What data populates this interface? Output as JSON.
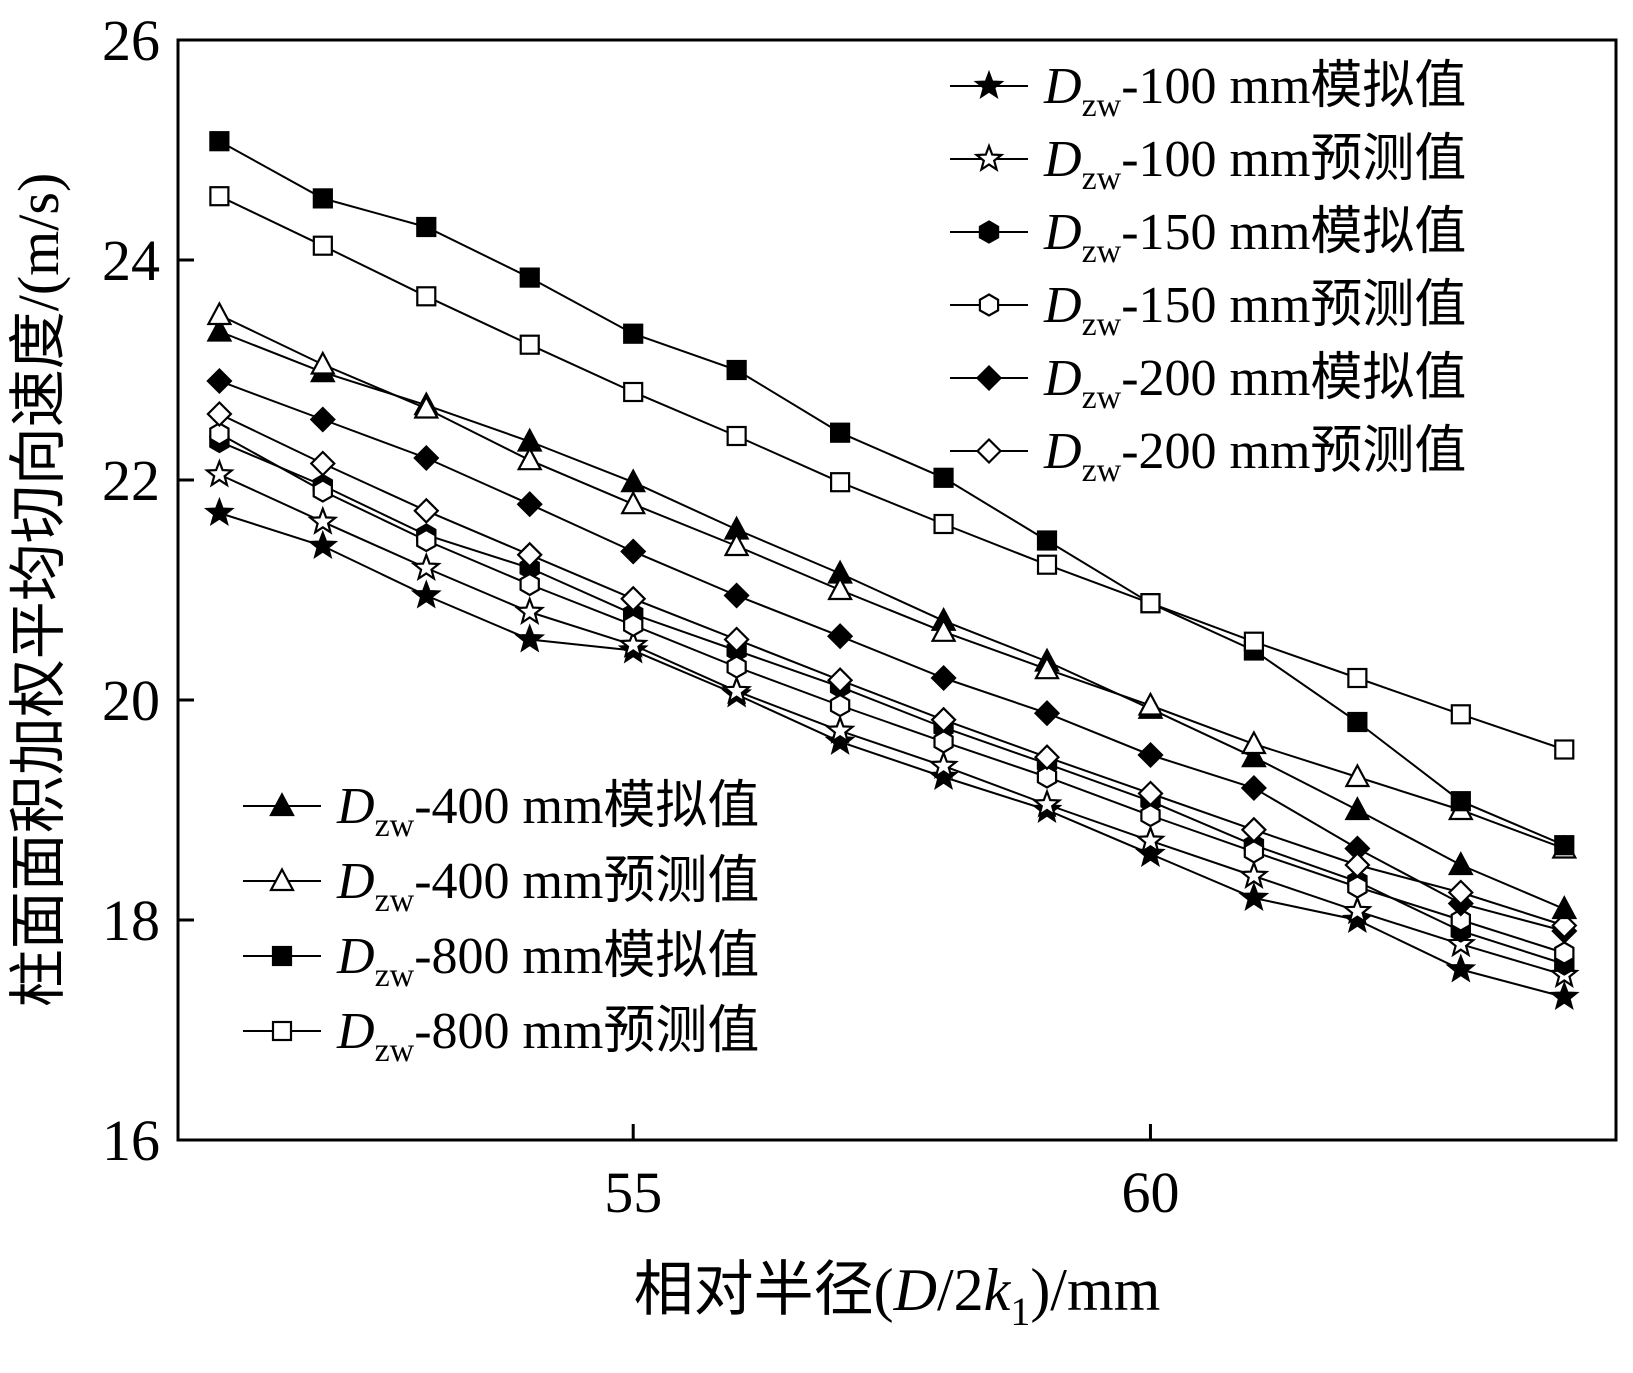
{
  "colors": {
    "foreground": "#000000",
    "background": "#ffffff"
  },
  "chart_data": {
    "type": "line",
    "title": "",
    "ylabel": "柱面面积加权平均切向速度/(m/s)",
    "xlabel_parts": [
      {
        "t": "相对半径(",
        "style": "normal"
      },
      {
        "t": "D",
        "style": "italic"
      },
      {
        "t": "/2",
        "style": "normal"
      },
      {
        "t": "k",
        "style": "italic"
      },
      {
        "t": "1",
        "style": "sub"
      },
      {
        "t": ")/mm",
        "style": "normal"
      }
    ],
    "xlim": [
      50.6,
      64.5
    ],
    "ylim": [
      16,
      26
    ],
    "xticks": [
      55,
      60
    ],
    "yticks": [
      16,
      18,
      20,
      22,
      24,
      26
    ],
    "x": [
      51,
      52,
      53,
      54,
      55,
      56,
      57,
      58,
      59,
      60,
      61,
      62,
      63,
      64
    ],
    "series": [
      {
        "id": "dzw100-sim",
        "marker": "star",
        "filled": true,
        "label_d": "D",
        "label_sub": "zw",
        "label_text": "-100 mm模拟值",
        "values": [
          21.7,
          21.4,
          20.95,
          20.55,
          20.45,
          20.05,
          19.62,
          19.3,
          19.0,
          18.6,
          18.2,
          18.0,
          17.55,
          17.3
        ]
      },
      {
        "id": "dzw100-pred",
        "marker": "star",
        "filled": false,
        "label_d": "D",
        "label_sub": "zw",
        "label_text": "-100 mm预测值",
        "values": [
          22.05,
          21.62,
          21.2,
          20.8,
          20.5,
          20.08,
          19.72,
          19.4,
          19.05,
          18.72,
          18.4,
          18.08,
          17.78,
          17.5
        ]
      },
      {
        "id": "dzw150-sim",
        "marker": "hexagon",
        "filled": true,
        "label_d": "D",
        "label_sub": "zw",
        "label_text": "-150 mm模拟值",
        "values": [
          22.35,
          21.95,
          21.5,
          21.2,
          20.78,
          20.45,
          20.12,
          19.75,
          19.42,
          19.08,
          18.68,
          18.35,
          17.9,
          17.6
        ]
      },
      {
        "id": "dzw150-pred",
        "marker": "hexagon",
        "filled": false,
        "label_d": "D",
        "label_sub": "zw",
        "label_text": "-150 mm预测值",
        "values": [
          22.42,
          21.9,
          21.45,
          21.05,
          20.68,
          20.3,
          19.95,
          19.62,
          19.3,
          18.95,
          18.62,
          18.3,
          18.0,
          17.7
        ]
      },
      {
        "id": "dzw200-sim",
        "marker": "diamond",
        "filled": true,
        "label_d": "D",
        "label_sub": "zw",
        "label_text": "-200 mm模拟值",
        "values": [
          22.9,
          22.55,
          22.2,
          21.78,
          21.35,
          20.95,
          20.58,
          20.2,
          19.88,
          19.5,
          19.2,
          18.65,
          18.15,
          17.9
        ]
      },
      {
        "id": "dzw200-pred",
        "marker": "diamond",
        "filled": false,
        "label_d": "D",
        "label_sub": "zw",
        "label_text": "-200 mm预测值",
        "values": [
          22.6,
          22.15,
          21.72,
          21.32,
          20.92,
          20.55,
          20.18,
          19.82,
          19.48,
          19.15,
          18.82,
          18.5,
          18.25,
          17.95
        ]
      },
      {
        "id": "dzw400-sim",
        "marker": "triangle",
        "filled": true,
        "label_d": "D",
        "label_sub": "zw",
        "label_text": "-400 mm模拟值",
        "values": [
          23.35,
          22.98,
          22.68,
          22.35,
          21.98,
          21.55,
          21.15,
          20.72,
          20.35,
          19.92,
          19.48,
          19.0,
          18.5,
          18.1
        ]
      },
      {
        "id": "dzw400-pred",
        "marker": "triangle",
        "filled": false,
        "label_d": "D",
        "label_sub": "zw",
        "label_text": "-400 mm预测值",
        "values": [
          23.5,
          23.05,
          22.65,
          22.18,
          21.78,
          21.4,
          21.0,
          20.62,
          20.28,
          19.95,
          19.6,
          19.3,
          19.0,
          18.65
        ]
      },
      {
        "id": "dzw800-sim",
        "marker": "square",
        "filled": true,
        "label_d": "D",
        "label_sub": "zw",
        "label_text": "-800 mm模拟值",
        "values": [
          25.08,
          24.56,
          24.3,
          23.84,
          23.33,
          23.0,
          22.43,
          22.02,
          21.45,
          20.88,
          20.45,
          19.8,
          19.08,
          18.68
        ]
      },
      {
        "id": "dzw800-pred",
        "marker": "square",
        "filled": false,
        "label_d": "D",
        "label_sub": "zw",
        "label_text": "-800 mm预测值",
        "values": [
          24.58,
          24.13,
          23.67,
          23.23,
          22.8,
          22.4,
          21.98,
          21.6,
          21.23,
          20.88,
          20.53,
          20.2,
          19.87,
          19.55
        ]
      }
    ],
    "legend_topright": [
      0,
      1,
      2,
      3,
      4,
      5
    ],
    "legend_bottomleft": [
      6,
      7,
      8,
      9
    ],
    "grid": false,
    "legend_positions": [
      "top-right",
      "bottom-left"
    ]
  }
}
